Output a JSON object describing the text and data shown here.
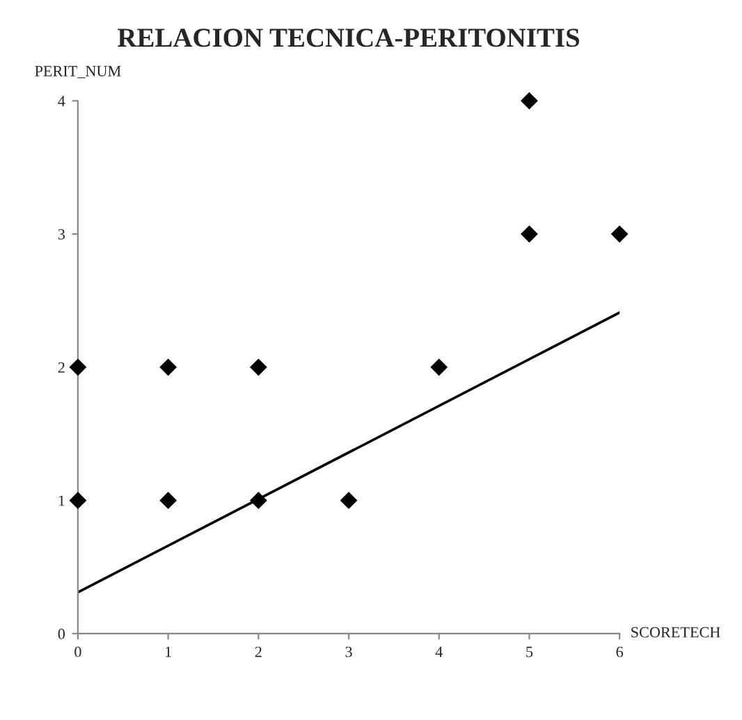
{
  "chart_data": {
    "type": "scatter",
    "title": "RELACION TECNICA-PERITONITIS",
    "xlabel": "SCORETECH",
    "ylabel": "PERIT_NUM",
    "series": [
      {
        "color": "#000000",
        "marker": "diamond",
        "x": [
          0,
          0,
          1,
          1,
          2,
          2,
          3,
          4,
          5,
          5,
          6
        ],
        "values": [
          1,
          2,
          1,
          2,
          1,
          2,
          1,
          2,
          3,
          4,
          3
        ]
      },
      {
        "type": "line",
        "color": "#000000",
        "marker": "none",
        "x": [
          0,
          6
        ],
        "values": [
          0.31,
          2.41
        ]
      }
    ],
    "xlim": [
      0,
      6
    ],
    "ylim": [
      0,
      4
    ],
    "xticks": [
      0,
      1,
      2,
      3,
      4,
      5,
      6
    ],
    "yticks": [
      0,
      1,
      2,
      3,
      4
    ],
    "grid": false,
    "legend": false
  }
}
